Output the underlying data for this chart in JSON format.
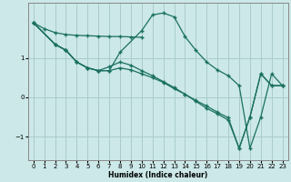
{
  "xlabel": "Humidex (Indice chaleur)",
  "bg_color": "#cce8e8",
  "plot_bg_color": "#cce8e8",
  "grid_color": "#aacccc",
  "line_color": "#1a7060",
  "ylim": [
    -1.6,
    2.4
  ],
  "xlim": [
    -0.5,
    23.5
  ],
  "yticks": [
    -1,
    0,
    1
  ],
  "xticks": [
    0,
    1,
    2,
    3,
    4,
    5,
    6,
    7,
    8,
    9,
    10,
    11,
    12,
    13,
    14,
    15,
    16,
    17,
    18,
    19,
    20,
    21,
    22,
    23
  ],
  "line1_x": [
    0,
    1,
    2,
    3,
    4,
    5,
    6,
    7,
    8,
    9,
    10
  ],
  "line1_y": [
    1.9,
    1.75,
    1.65,
    1.6,
    1.58,
    1.57,
    1.56,
    1.55,
    1.55,
    1.54,
    1.53
  ],
  "line2_x": [
    0,
    2,
    3,
    4,
    5,
    6,
    7,
    8,
    10,
    11,
    12,
    13,
    14,
    15,
    16,
    17,
    18,
    19,
    20,
    21,
    22,
    23
  ],
  "line2_y": [
    1.9,
    1.35,
    1.2,
    0.9,
    0.75,
    0.68,
    0.68,
    1.15,
    1.7,
    2.1,
    2.15,
    2.05,
    1.55,
    1.2,
    0.9,
    0.7,
    0.55,
    0.3,
    -1.3,
    -0.5,
    0.6,
    0.3
  ],
  "line3_x": [
    0,
    2,
    3,
    4,
    5,
    6,
    7,
    8,
    9,
    10,
    11,
    12,
    13,
    14,
    15,
    16,
    17,
    18,
    19,
    20,
    21,
    22,
    23
  ],
  "line3_y": [
    1.9,
    1.35,
    1.2,
    0.9,
    0.75,
    0.68,
    0.68,
    0.75,
    0.7,
    0.6,
    0.5,
    0.38,
    0.22,
    0.08,
    -0.08,
    -0.22,
    -0.38,
    -0.52,
    -1.3,
    -0.5,
    0.6,
    0.3,
    0.3
  ],
  "line4_x": [
    0,
    2,
    3,
    4,
    5,
    6,
    7,
    8,
    9,
    10,
    11,
    12,
    13,
    14,
    15,
    16,
    17,
    18,
    19,
    20,
    21,
    22,
    23
  ],
  "line4_y": [
    1.9,
    1.35,
    1.2,
    0.9,
    0.75,
    0.68,
    0.78,
    0.9,
    0.82,
    0.68,
    0.55,
    0.4,
    0.25,
    0.08,
    -0.1,
    -0.28,
    -0.42,
    -0.58,
    -1.3,
    -0.5,
    0.6,
    0.3,
    0.3
  ],
  "marker": "+",
  "marker_size": 3,
  "line_width": 0.9
}
